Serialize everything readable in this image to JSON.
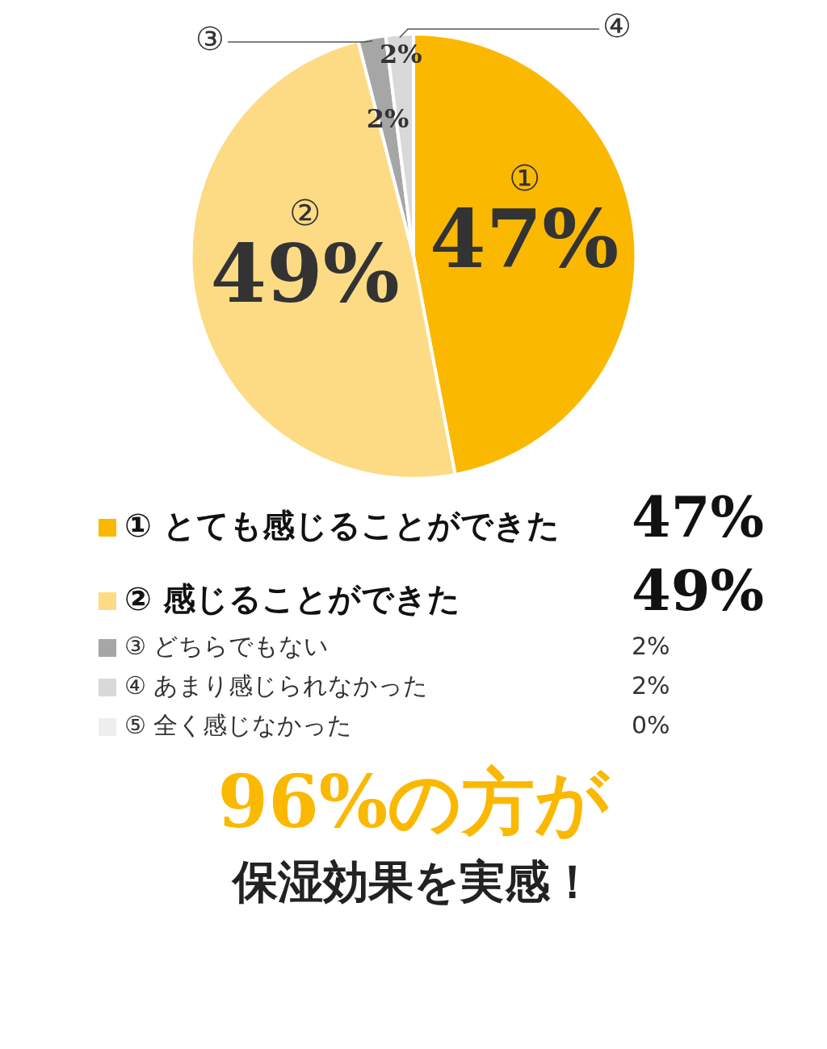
{
  "chart_data": {
    "type": "pie",
    "categories": [
      "① とても感じることができた",
      "② 感じることができた",
      "③ どちらでもない",
      "④ あまり感じられなかった",
      "⑤ 全く感じなかった"
    ],
    "values": [
      47,
      49,
      2,
      2,
      0
    ],
    "colors": [
      "#fbb800",
      "#fddb85",
      "#a6a6a6",
      "#d9d9d9",
      "#eeeeee"
    ],
    "value_labels": [
      "47%",
      "49%",
      "2%",
      "2%",
      "0%"
    ],
    "legend": "bottom",
    "annotations": [
      {
        "text": "①",
        "x": "① とても感じることができた"
      },
      {
        "text": "②",
        "x": "② 感じることができた"
      },
      {
        "text": "③",
        "x": "③ どちらでもない"
      },
      {
        "text": "④",
        "x": "④ あまり感じられなかった"
      },
      "96%の方が",
      "保湿効果を実感！"
    ]
  }
}
